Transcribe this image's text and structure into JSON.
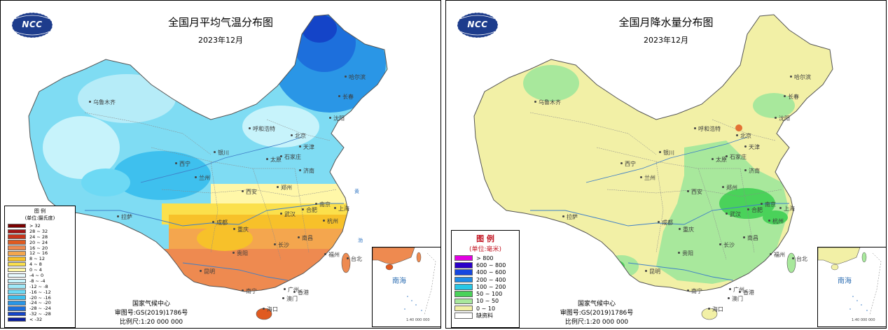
{
  "logo": {
    "text": "NCC"
  },
  "temp_panel": {
    "title": "全国月平均气温分布图",
    "subtitle": "2023年12月",
    "legend": {
      "title": "图  例",
      "unit": "(单位:摄氏度)",
      "items": [
        {
          "label": "> 32",
          "color": "#7a0000"
        },
        {
          "label": "28 ~ 32",
          "color": "#a31515"
        },
        {
          "label": "24 ~ 28",
          "color": "#c8341a"
        },
        {
          "label": "20 ~ 24",
          "color": "#e05a20"
        },
        {
          "label": "16 ~ 20",
          "color": "#ee8a50"
        },
        {
          "label": "12 ~ 16",
          "color": "#f4a64e"
        },
        {
          "label": "8 ~ 12",
          "color": "#f7c12a"
        },
        {
          "label": "4 ~ 8",
          "color": "#fbe04c"
        },
        {
          "label": "0 ~ 4",
          "color": "#fff7a8"
        },
        {
          "label": "-4 ~ 0",
          "color": "#e9fbff"
        },
        {
          "label": "-8 ~ -4",
          "color": "#c7f3fb"
        },
        {
          "label": "-12 ~ -8",
          "color": "#9fe9f8"
        },
        {
          "label": "-16 ~ -12",
          "color": "#6dd9f4"
        },
        {
          "label": "-20 ~ -16",
          "color": "#3ec0ee"
        },
        {
          "label": "-24 ~ -20",
          "color": "#2a96e6"
        },
        {
          "label": "-28 ~ -24",
          "color": "#1d6fdc"
        },
        {
          "label": "-32 ~ -28",
          "color": "#1444c8"
        },
        {
          "label": "< -32",
          "color": "#0a1e9c"
        }
      ]
    },
    "footer": {
      "org": "国家气候中心",
      "approval": "审图号:GS(2019)1786号",
      "scale": "比例尺:1:20 000 000"
    }
  },
  "precip_panel": {
    "title": "全国月降水量分布图",
    "subtitle": "2023年12月",
    "legend": {
      "title": "图  例",
      "unit": "(单位:毫米)",
      "items": [
        {
          "label": "> 800",
          "color": "#e200e2"
        },
        {
          "label": "600 ~ 800",
          "color": "#2a00c8"
        },
        {
          "label": "400 ~ 600",
          "color": "#1446e0"
        },
        {
          "label": "200 ~ 400",
          "color": "#1e8ce8"
        },
        {
          "label": "100 ~ 200",
          "color": "#28c8e6"
        },
        {
          "label": "50 ~ 100",
          "color": "#4ad25a"
        },
        {
          "label": "10 ~ 50",
          "color": "#a8e89c"
        },
        {
          "label": "0 ~ 10",
          "color": "#f2f0a6"
        },
        {
          "label": "缺资料",
          "color": "#ffffff"
        }
      ]
    },
    "footer": {
      "org": "国家气候中心",
      "approval": "审图号:GS(2019)1786号",
      "scale": "比例尺:1:20 000 000"
    }
  },
  "cities": [
    "乌鲁木齐",
    "哈尔滨",
    "长春",
    "呼和浩特",
    "沈阳",
    "北京",
    "天津",
    "石家庄",
    "太原",
    "银川",
    "西宁",
    "兰州",
    "济南",
    "郑州",
    "西安",
    "南京",
    "合肥",
    "上海",
    "武汉",
    "成都",
    "重庆",
    "杭州",
    "长沙",
    "南昌",
    "贵阳",
    "福州",
    "昆明",
    "台北",
    "广州",
    "南宁",
    "香港",
    "澳门",
    "海口",
    "拉萨"
  ],
  "inset": {
    "sea": "南海",
    "scale": "1:40 000 000"
  }
}
